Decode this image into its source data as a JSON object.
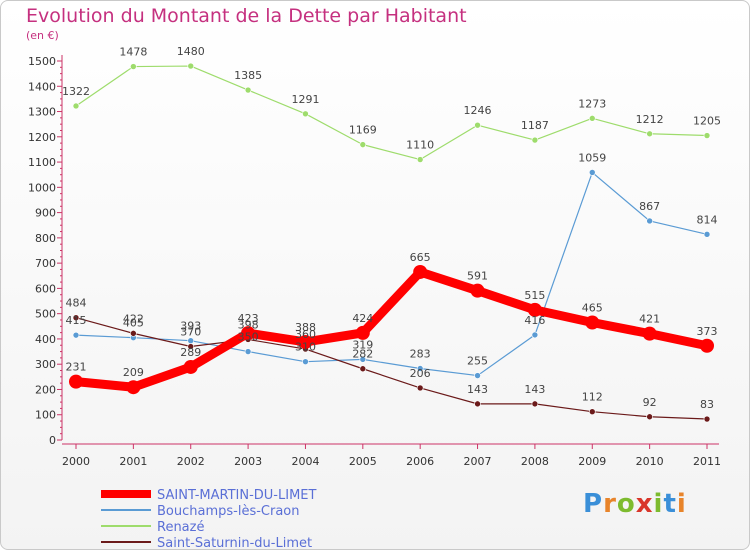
{
  "header": {
    "title": "Evolution du Montant de la Dette par Habitant",
    "subtitle": "(en €)"
  },
  "logo": {
    "text": "Proxiti",
    "letters": [
      "P",
      "r",
      "o",
      "x",
      "i",
      "t",
      "i"
    ],
    "colors": [
      "#3a8fd8",
      "#e8842a",
      "#7dbb2e",
      "#d9362a",
      "#7dbb2e",
      "#3a8fd8",
      "#e8842a"
    ]
  },
  "chart_data": {
    "type": "line",
    "title": "Evolution du Montant de la Dette par Habitant",
    "ylabel": "(en €)",
    "xlabel": "",
    "x": [
      "2000",
      "2001",
      "2002",
      "2003",
      "2004",
      "2005",
      "2006",
      "2007",
      "2008",
      "2009",
      "2010",
      "2011"
    ],
    "ylim": [
      0,
      1500
    ],
    "yticks": [
      0,
      100,
      200,
      300,
      400,
      500,
      600,
      700,
      800,
      900,
      1000,
      1100,
      1200,
      1300,
      1400,
      1500
    ],
    "grid": false,
    "legend_position": "bottom-left",
    "series": [
      {
        "name": "SAINT-MARTIN-DU-LIMET",
        "color": "#ff0000",
        "emphasis": true,
        "values": [
          231,
          209,
          289,
          423,
          388,
          424,
          665,
          591,
          515,
          465,
          421,
          373
        ]
      },
      {
        "name": "Bouchamps-lès-Craon",
        "color": "#5a9bd4",
        "values": [
          415,
          405,
          393,
          350,
          310,
          319,
          283,
          255,
          416,
          1059,
          867,
          814
        ]
      },
      {
        "name": "Renazé",
        "color": "#9edc6c",
        "values": [
          1322,
          1478,
          1480,
          1385,
          1291,
          1169,
          1110,
          1246,
          1187,
          1273,
          1212,
          1205
        ]
      },
      {
        "name": "Saint-Saturnin-du-Limet",
        "color": "#6b1a1a",
        "values": [
          484,
          422,
          370,
          398,
          360,
          282,
          206,
          143,
          143,
          112,
          92,
          83
        ]
      }
    ]
  }
}
